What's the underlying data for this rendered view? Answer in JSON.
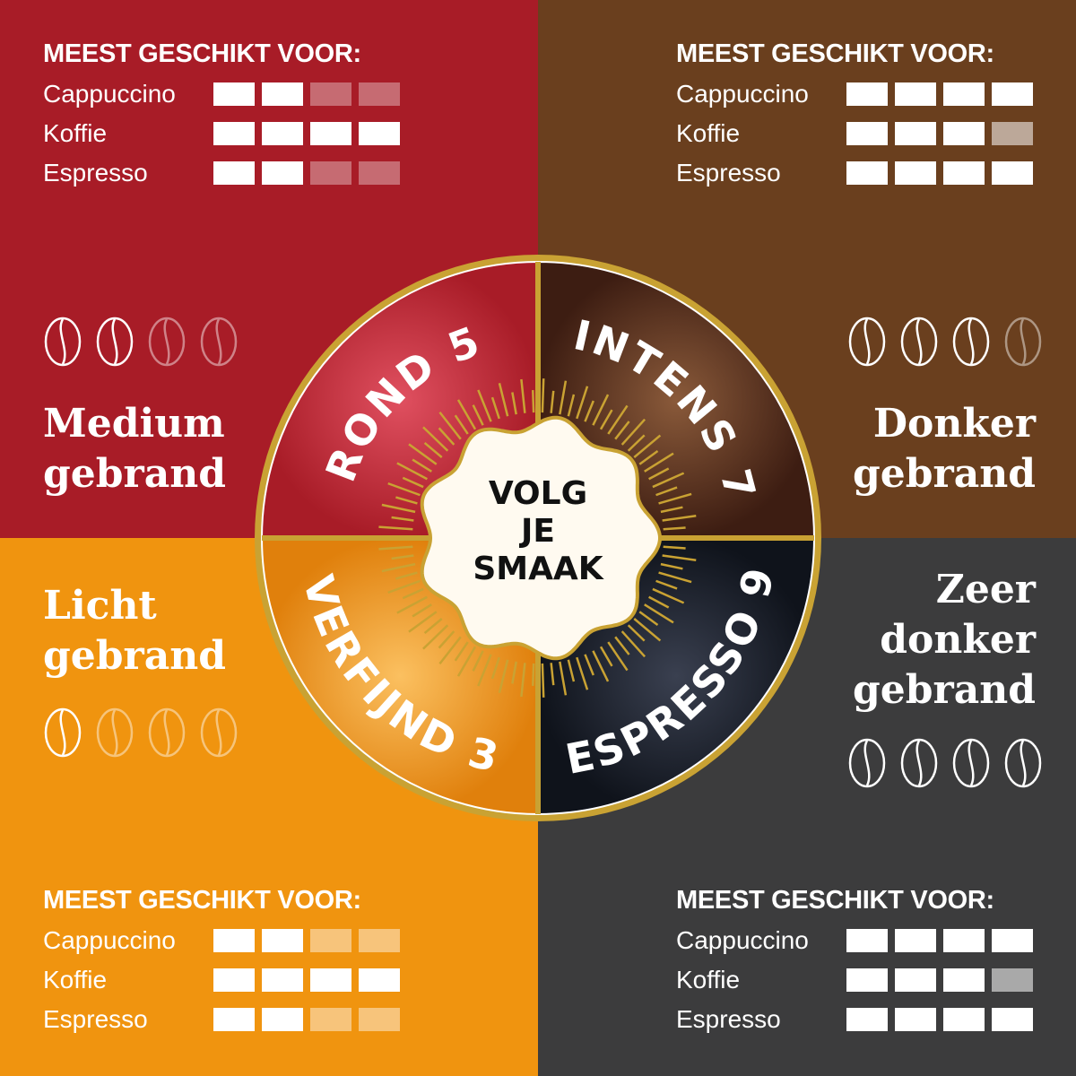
{
  "quadrants": [
    {
      "id": "medium",
      "heading": "MEEST GESCHIKT VOOR:",
      "roast": [
        "Medium",
        "gebrand"
      ],
      "beans": [
        1,
        1,
        0.5,
        0.5
      ],
      "rows": [
        {
          "label": "Cappuccino",
          "levels": [
            1,
            1,
            0.5,
            0.5
          ]
        },
        {
          "label": "Koffie",
          "levels": [
            1,
            1,
            1,
            1
          ]
        },
        {
          "label": "Espresso",
          "levels": [
            1,
            1,
            0.5,
            0.5
          ]
        }
      ]
    },
    {
      "id": "donker",
      "heading": "MEEST GESCHIKT VOOR:",
      "roast": [
        "Donker",
        "gebrand"
      ],
      "beans": [
        1,
        1,
        1,
        0.5
      ],
      "rows": [
        {
          "label": "Cappuccino",
          "levels": [
            1,
            1,
            1,
            1
          ]
        },
        {
          "label": "Koffie",
          "levels": [
            1,
            1,
            1,
            0.5
          ]
        },
        {
          "label": "Espresso",
          "levels": [
            1,
            1,
            1,
            1
          ]
        }
      ]
    },
    {
      "id": "licht",
      "heading": "MEEST GESCHIKT VOOR:",
      "roast": [
        "Licht",
        "gebrand"
      ],
      "beans": [
        1,
        0.5,
        0.5,
        0.5
      ],
      "rows": [
        {
          "label": "Cappuccino",
          "levels": [
            1,
            1,
            0.5,
            0.5
          ]
        },
        {
          "label": "Koffie",
          "levels": [
            1,
            1,
            1,
            1
          ]
        },
        {
          "label": "Espresso",
          "levels": [
            1,
            1,
            0.5,
            0.5
          ]
        }
      ]
    },
    {
      "id": "zeer-donker",
      "heading": "MEEST GESCHIKT VOOR:",
      "roast": [
        "Zeer",
        "donker",
        "gebrand"
      ],
      "beans": [
        1,
        1,
        1,
        1
      ],
      "rows": [
        {
          "label": "Cappuccino",
          "levels": [
            1,
            1,
            1,
            1
          ]
        },
        {
          "label": "Koffie",
          "levels": [
            1,
            1,
            1,
            0.5
          ]
        },
        {
          "label": "Espresso",
          "levels": [
            1,
            1,
            1,
            1
          ]
        }
      ]
    }
  ],
  "wheel": {
    "segments": [
      "ROND 5",
      "INTENS 7",
      "VERFIJND 3",
      "ESPRESSO 9"
    ],
    "center": [
      "VOLG",
      "JE",
      "SMAAK"
    ]
  },
  "colors": {
    "red": "#a81c27",
    "brown": "#6a3f1e",
    "orange": "#f0940f",
    "gray": "#3c3c3d",
    "gold": "#c9a233",
    "navy": "#151a24"
  }
}
